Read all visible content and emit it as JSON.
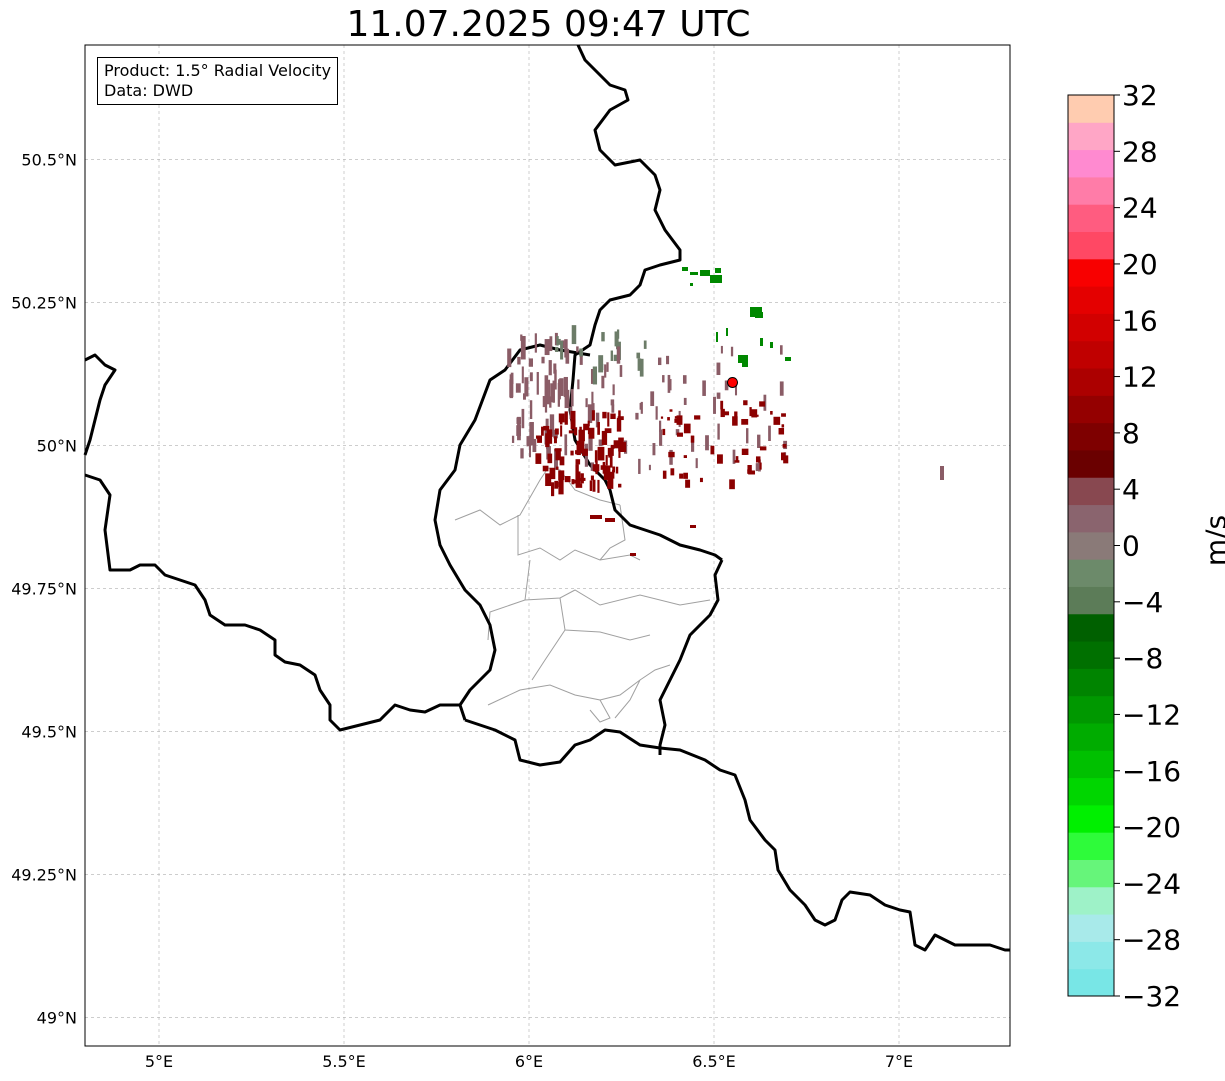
{
  "title": "11.07.2025 09:47 UTC",
  "info_box": {
    "product": "Product: 1.5° Radial Velocity",
    "source": "Data: DWD"
  },
  "map": {
    "lon_range": [
      4.8,
      7.3
    ],
    "lat_range": [
      48.95,
      50.7
    ],
    "grid": true,
    "lon_ticks": [
      {
        "value": 5.0,
        "label": "5°E"
      },
      {
        "value": 5.5,
        "label": "5.5°E"
      },
      {
        "value": 6.0,
        "label": "6°E"
      },
      {
        "value": 6.5,
        "label": "6.5°E"
      },
      {
        "value": 7.0,
        "label": "7°E"
      }
    ],
    "lat_ticks": [
      {
        "value": 49.0,
        "label": "49°N"
      },
      {
        "value": 49.25,
        "label": "49.25°N"
      },
      {
        "value": 49.5,
        "label": "49.5°N"
      },
      {
        "value": 49.75,
        "label": "49.75°N"
      },
      {
        "value": 50.0,
        "label": "50°N"
      },
      {
        "value": 50.25,
        "label": "50.25°N"
      },
      {
        "value": 50.5,
        "label": "50.5°N"
      }
    ],
    "radar_site": {
      "lon": 6.55,
      "lat": 50.11
    }
  },
  "colorbar": {
    "label": "m/s",
    "min": -32,
    "max": 32,
    "ticks": [
      "−32",
      "−28",
      "−24",
      "−20",
      "−16",
      "−12",
      "−8",
      "−4",
      "0",
      "4",
      "8",
      "12",
      "16",
      "20",
      "24",
      "28",
      "32"
    ],
    "colors": [
      "#78e6e6",
      "#8ce8e8",
      "#a8eaea",
      "#9ef2c8",
      "#66f57a",
      "#2efb3a",
      "#00f000",
      "#00d600",
      "#00c000",
      "#00ac00",
      "#009800",
      "#008400",
      "#007000",
      "#006000",
      "#5c7c58",
      "#6c8a6a",
      "#8a7a78",
      "#8a646e",
      "#884850",
      "#6a0000",
      "#7e0000",
      "#940000",
      "#ac0000",
      "#c00000",
      "#d20000",
      "#e40000",
      "#f80000",
      "#ff4864",
      "#ff5c80",
      "#ff7ca8",
      "#ff8ad0",
      "#ffa6c6",
      "#ffccb0"
    ]
  },
  "velocity_colors": {
    "outbound_strong": "#8b0000",
    "outbound_weak": "#8a5c66",
    "near_zero": "#6c7c68",
    "inbound": "#008800",
    "radar_marker": "#ff0000"
  }
}
